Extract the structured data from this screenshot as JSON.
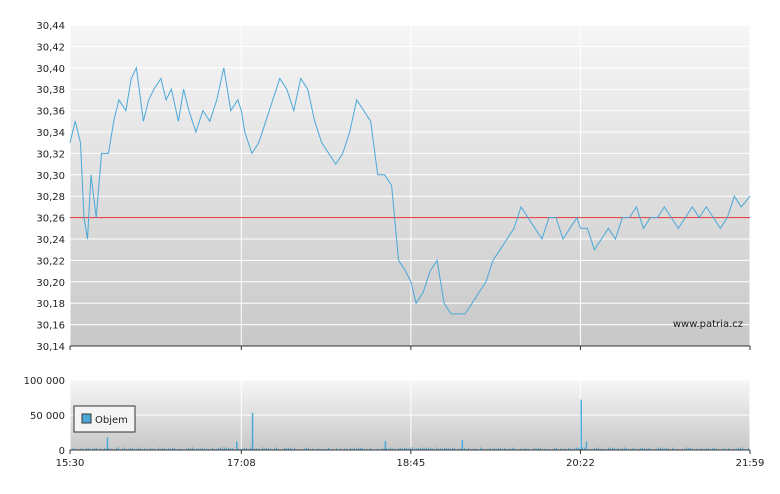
{
  "watermark": "www.patria.cz",
  "colors": {
    "price_line": "#4aa8d8",
    "reference_line": "#e03030",
    "volume_bar": "#4aa8d8",
    "plot_bg_top": "#f6f6f6",
    "plot_bg_bottom": "#c8c8c8",
    "grid": "#ffffff"
  },
  "chart_data": [
    {
      "type": "line",
      "name": "price",
      "ylim": [
        30.14,
        30.44
      ],
      "yticks": [
        "30,44",
        "30,42",
        "30,40",
        "30,38",
        "30,36",
        "30,34",
        "30,32",
        "30,30",
        "30,28",
        "30,26",
        "30,24",
        "30,22",
        "30,20",
        "30,18",
        "30,16",
        "30,14"
      ],
      "xlim": [
        "15:30",
        "21:59"
      ],
      "xticks": [
        "15:30",
        "17:08",
        "18:45",
        "20:22",
        "21:59"
      ],
      "reference_line": 30.26,
      "grid": true,
      "x": [
        "15:30",
        "15:33",
        "15:36",
        "15:38",
        "15:40",
        "15:42",
        "15:45",
        "15:48",
        "15:52",
        "15:55",
        "15:58",
        "16:02",
        "16:05",
        "16:08",
        "16:12",
        "16:15",
        "16:18",
        "16:22",
        "16:25",
        "16:28",
        "16:32",
        "16:35",
        "16:38",
        "16:42",
        "16:46",
        "16:50",
        "16:54",
        "16:58",
        "17:02",
        "17:06",
        "17:08",
        "17:10",
        "17:14",
        "17:18",
        "17:22",
        "17:26",
        "17:30",
        "17:34",
        "17:38",
        "17:42",
        "17:46",
        "17:50",
        "17:54",
        "17:58",
        "18:02",
        "18:06",
        "18:10",
        "18:14",
        "18:18",
        "18:22",
        "18:26",
        "18:30",
        "18:34",
        "18:38",
        "18:42",
        "18:45",
        "18:48",
        "18:52",
        "18:56",
        "19:00",
        "19:04",
        "19:08",
        "19:12",
        "19:16",
        "19:20",
        "19:24",
        "19:28",
        "19:32",
        "19:36",
        "19:40",
        "19:44",
        "19:48",
        "19:52",
        "19:56",
        "20:00",
        "20:04",
        "20:08",
        "20:12",
        "20:16",
        "20:20",
        "20:22",
        "20:26",
        "20:30",
        "20:34",
        "20:38",
        "20:42",
        "20:46",
        "20:50",
        "20:54",
        "20:58",
        "21:02",
        "21:06",
        "21:10",
        "21:14",
        "21:18",
        "21:22",
        "21:26",
        "21:30",
        "21:34",
        "21:38",
        "21:42",
        "21:46",
        "21:50",
        "21:54",
        "21:59"
      ],
      "values": [
        30.33,
        30.35,
        30.33,
        30.26,
        30.24,
        30.3,
        30.26,
        30.32,
        30.32,
        30.35,
        30.37,
        30.36,
        30.39,
        30.4,
        30.35,
        30.37,
        30.38,
        30.39,
        30.37,
        30.38,
        30.35,
        30.38,
        30.36,
        30.34,
        30.36,
        30.35,
        30.37,
        30.4,
        30.36,
        30.37,
        30.36,
        30.34,
        30.32,
        30.33,
        30.35,
        30.37,
        30.39,
        30.38,
        30.36,
        30.39,
        30.38,
        30.35,
        30.33,
        30.32,
        30.31,
        30.32,
        30.34,
        30.37,
        30.36,
        30.35,
        30.3,
        30.3,
        30.29,
        30.22,
        30.21,
        30.2,
        30.18,
        30.19,
        30.21,
        30.22,
        30.18,
        30.17,
        30.17,
        30.17,
        30.18,
        30.19,
        30.2,
        30.22,
        30.23,
        30.24,
        30.25,
        30.27,
        30.26,
        30.25,
        30.24,
        30.26,
        30.26,
        30.24,
        30.25,
        30.26,
        30.25,
        30.25,
        30.23,
        30.24,
        30.25,
        30.24,
        30.26,
        30.26,
        30.27,
        30.25,
        30.26,
        30.26,
        30.27,
        30.26,
        30.25,
        30.26,
        30.27,
        30.26,
        30.27,
        30.26,
        30.25,
        30.26,
        30.28,
        30.27,
        30.28
      ]
    },
    {
      "type": "bar",
      "name": "volume",
      "legend": [
        "Objem"
      ],
      "legend_position": "top-left",
      "ylim": [
        0,
        100000
      ],
      "yticks": [
        "100 000",
        "50 000",
        "0"
      ],
      "xticks": [
        "15:30",
        "17:08",
        "18:45",
        "20:22",
        "21:59"
      ],
      "spikes": [
        {
          "x": "15:51",
          "value": 18000
        },
        {
          "x": "17:14",
          "value": 53000
        },
        {
          "x": "17:05",
          "value": 12000
        },
        {
          "x": "18:30",
          "value": 13000
        },
        {
          "x": "19:14",
          "value": 14000
        },
        {
          "x": "20:22",
          "value": 72000
        },
        {
          "x": "20:25",
          "value": 12000
        }
      ],
      "baseline_level": 2000
    }
  ]
}
